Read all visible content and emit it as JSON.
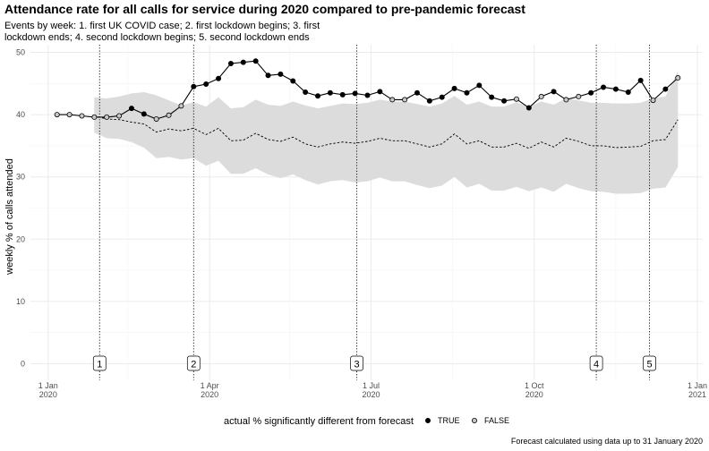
{
  "chart_data": {
    "type": "line",
    "title": "Attendance rate for all calls for service during 2020 compared to pre-pandemic forecast",
    "subtitle_lines": [
      "Events by week: 1. first UK COVID case; 2. first lockdown begins; 3. first",
      "lockdown ends; 4. second lockdown begins; 5. second lockdown ends"
    ],
    "ylabel": "weekly % of calls attended",
    "xlabel": "",
    "ylim": [
      0,
      50
    ],
    "y_ticks": [
      0,
      10,
      20,
      30,
      40,
      50
    ],
    "x_ticks": [
      {
        "date": "2020-01-01",
        "label1": "1 Jan",
        "label2": "2020"
      },
      {
        "date": "2020-04-01",
        "label1": "1 Apr",
        "label2": "2020"
      },
      {
        "date": "2020-07-01",
        "label1": "1 Jul",
        "label2": "2020"
      },
      {
        "date": "2020-10-01",
        "label1": "1 Oct",
        "label2": "2020"
      },
      {
        "date": "2021-01-01",
        "label1": "1 Jan",
        "label2": "2021"
      }
    ],
    "x_range": [
      "2019-12-22",
      "2021-01-04"
    ],
    "grid": true,
    "legend_title": "actual % significantly different from forecast",
    "legend_position": "bottom",
    "legend_entries": [
      {
        "label": "TRUE",
        "fill": "#000000"
      },
      {
        "label": "FALSE",
        "fill": "#c8c8c8"
      }
    ],
    "events": [
      {
        "label": "1",
        "date": "2020-01-30"
      },
      {
        "label": "2",
        "date": "2020-03-23"
      },
      {
        "label": "3",
        "date": "2020-06-23"
      },
      {
        "label": "4",
        "date": "2020-11-05"
      },
      {
        "label": "5",
        "date": "2020-12-05"
      }
    ],
    "caption": "Forecast calculated using data up to 31 January 2020",
    "colors": {
      "band": "#dcdcdc",
      "line": "#000000",
      "grid": "#ebebeb"
    },
    "series": [
      {
        "name": "actual",
        "weeks": [
          "2020-01-06",
          "2020-01-13",
          "2020-01-20",
          "2020-01-27",
          "2020-02-03",
          "2020-02-10",
          "2020-02-17",
          "2020-02-24",
          "2020-03-02",
          "2020-03-09",
          "2020-03-16",
          "2020-03-23",
          "2020-03-30",
          "2020-04-06",
          "2020-04-13",
          "2020-04-20",
          "2020-04-27",
          "2020-05-04",
          "2020-05-11",
          "2020-05-18",
          "2020-05-25",
          "2020-06-01",
          "2020-06-08",
          "2020-06-15",
          "2020-06-22",
          "2020-06-29",
          "2020-07-06",
          "2020-07-13",
          "2020-07-20",
          "2020-07-27",
          "2020-08-03",
          "2020-08-10",
          "2020-08-17",
          "2020-08-24",
          "2020-08-31",
          "2020-09-07",
          "2020-09-14",
          "2020-09-21",
          "2020-09-28",
          "2020-10-05",
          "2020-10-12",
          "2020-10-19",
          "2020-10-26",
          "2020-11-02",
          "2020-11-09",
          "2020-11-16",
          "2020-11-23",
          "2020-11-30",
          "2020-12-07",
          "2020-12-14",
          "2020-12-21"
        ],
        "values": [
          40.0,
          40.0,
          39.8,
          39.6,
          39.6,
          39.8,
          41.0,
          40.1,
          39.3,
          39.9,
          41.4,
          44.5,
          44.9,
          45.8,
          48.2,
          48.4,
          48.6,
          46.3,
          46.5,
          45.4,
          43.6,
          43.0,
          43.5,
          43.2,
          43.4,
          43.1,
          43.7,
          42.4,
          42.4,
          43.5,
          42.2,
          42.8,
          44.2,
          43.5,
          44.7,
          42.8,
          42.2,
          42.5,
          41.1,
          42.9,
          43.7,
          42.4,
          42.9,
          43.5,
          44.4,
          44.1,
          43.6,
          45.5,
          42.3,
          44.1,
          45.9
        ],
        "significant": [
          false,
          false,
          false,
          false,
          false,
          false,
          true,
          true,
          false,
          false,
          false,
          true,
          true,
          true,
          true,
          true,
          true,
          true,
          true,
          true,
          true,
          true,
          true,
          true,
          true,
          true,
          true,
          false,
          false,
          true,
          true,
          true,
          true,
          true,
          true,
          true,
          true,
          false,
          true,
          false,
          true,
          false,
          false,
          true,
          true,
          true,
          true,
          true,
          false,
          true,
          false
        ]
      },
      {
        "name": "forecast",
        "weeks": [
          "2020-01-27",
          "2020-02-03",
          "2020-02-10",
          "2020-02-17",
          "2020-02-24",
          "2020-03-02",
          "2020-03-09",
          "2020-03-16",
          "2020-03-23",
          "2020-03-30",
          "2020-04-06",
          "2020-04-13",
          "2020-04-20",
          "2020-04-27",
          "2020-05-04",
          "2020-05-11",
          "2020-05-18",
          "2020-05-25",
          "2020-06-01",
          "2020-06-08",
          "2020-06-15",
          "2020-06-22",
          "2020-06-29",
          "2020-07-06",
          "2020-07-13",
          "2020-07-20",
          "2020-07-27",
          "2020-08-03",
          "2020-08-10",
          "2020-08-17",
          "2020-08-24",
          "2020-08-31",
          "2020-09-07",
          "2020-09-14",
          "2020-09-21",
          "2020-09-28",
          "2020-10-05",
          "2020-10-12",
          "2020-10-19",
          "2020-10-26",
          "2020-11-02",
          "2020-11-09",
          "2020-11-16",
          "2020-11-23",
          "2020-11-30",
          "2020-12-07",
          "2020-12-14",
          "2020-12-21"
        ],
        "values": [
          39.8,
          39.3,
          39.2,
          38.8,
          38.5,
          37.2,
          37.7,
          37.4,
          37.8,
          36.8,
          37.8,
          35.8,
          35.9,
          37.0,
          36.0,
          35.7,
          36.4,
          35.3,
          34.8,
          35.3,
          35.6,
          35.4,
          35.7,
          36.2,
          35.8,
          35.8,
          35.3,
          34.8,
          35.3,
          36.9,
          35.3,
          35.8,
          34.8,
          34.8,
          35.4,
          34.6,
          35.6,
          34.8,
          36.2,
          35.7,
          35.0,
          35.0,
          34.7,
          34.8,
          34.9,
          35.8,
          36.0,
          39.2
        ],
        "upper": [
          42.8,
          42.6,
          42.9,
          43.4,
          43.6,
          43.1,
          42.3,
          41.5,
          42.0,
          41.3,
          42.8,
          41.0,
          41.2,
          42.4,
          41.6,
          41.4,
          42.1,
          41.5,
          41.0,
          41.4,
          41.8,
          41.7,
          41.9,
          42.4,
          42.1,
          42.1,
          41.7,
          41.3,
          41.8,
          43.0,
          41.6,
          42.1,
          41.3,
          41.3,
          42.0,
          41.3,
          42.1,
          41.6,
          42.6,
          42.3,
          41.9,
          41.9,
          41.8,
          41.8,
          41.9,
          42.6,
          42.9,
          47.0
        ],
        "lower": [
          37.1,
          36.2,
          36.1,
          35.6,
          34.7,
          33.0,
          33.2,
          32.8,
          33.0,
          31.8,
          32.6,
          30.5,
          30.5,
          31.4,
          30.4,
          29.8,
          30.4,
          29.5,
          28.8,
          29.3,
          29.5,
          29.1,
          29.3,
          29.9,
          29.3,
          29.3,
          28.7,
          28.2,
          28.6,
          30.0,
          28.3,
          28.9,
          27.8,
          27.8,
          28.4,
          27.7,
          28.3,
          27.6,
          28.9,
          28.2,
          27.7,
          27.6,
          27.3,
          27.3,
          27.4,
          28.1,
          28.3,
          31.6
        ]
      }
    ]
  }
}
